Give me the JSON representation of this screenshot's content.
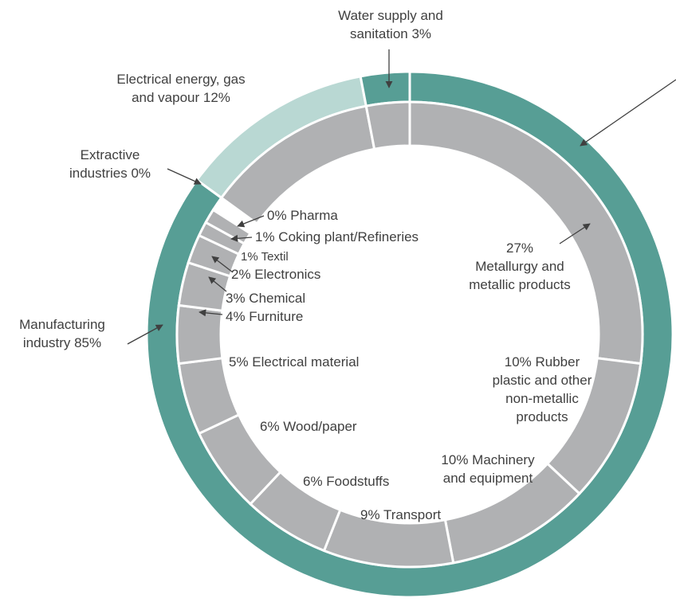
{
  "chart_data": {
    "type": "donut",
    "outer": {
      "values": [
        85,
        0,
        12,
        3
      ],
      "value_labels": [
        "Manufacturing industry 85%",
        "Extractive\nindustries 0%",
        "Electrical energy, gas\nand vapour 12%",
        "Water supply and\nsanitation 3%"
      ],
      "colors": [
        "#579e95",
        "#579e95",
        "#b9d8d3",
        "#579e95"
      ]
    },
    "inner": {
      "values": [
        27,
        10,
        10,
        9,
        6,
        6,
        5,
        4,
        3,
        2,
        1,
        1,
        0
      ],
      "value_labels": [
        "27%\nMetallurgy and\nmetallic products",
        "10% Rubber\nplastic and other\nnon-metallic\nproducts",
        "10% Machinery\nand equipment",
        "9% Transport",
        "6% Foodstuffs",
        "6% Wood/paper",
        "5% Electrical material",
        "4% Furniture",
        "3% Chemical",
        "2% Electronics",
        "1% Textil",
        "1% Coking plant/Refineries",
        "0% Pharma"
      ],
      "color": "#b0b1b3"
    }
  }
}
